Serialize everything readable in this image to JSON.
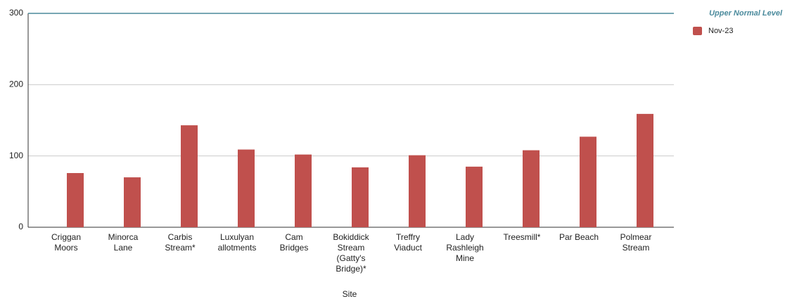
{
  "chart_data": {
    "type": "bar",
    "categories": [
      "Criggan\nMoors",
      "Minorca\nLane",
      "Carbis\nStream*",
      "Luxulyan\nallotments",
      "Cam\nBridges",
      "Bokiddick\nStream\n(Gatty's\nBridge)*",
      "Treffry\nViaduct",
      "Lady\nRashleigh\nMine",
      "Treesmill*",
      "Par Beach",
      "Polmear\nStream"
    ],
    "series": [
      {
        "name": "Nov-23",
        "color": "#c0504d",
        "values": [
          76,
          70,
          143,
          109,
          102,
          84,
          101,
          85,
          108,
          127,
          159
        ]
      }
    ],
    "ylim": [
      0,
      300
    ],
    "yticks": [
      0,
      100,
      200,
      300
    ],
    "grid": true,
    "x_label": "Site",
    "reference_line": {
      "value": 300,
      "label": "Upper Normal Level",
      "color": "#4a8a9c"
    },
    "legend": "right"
  }
}
